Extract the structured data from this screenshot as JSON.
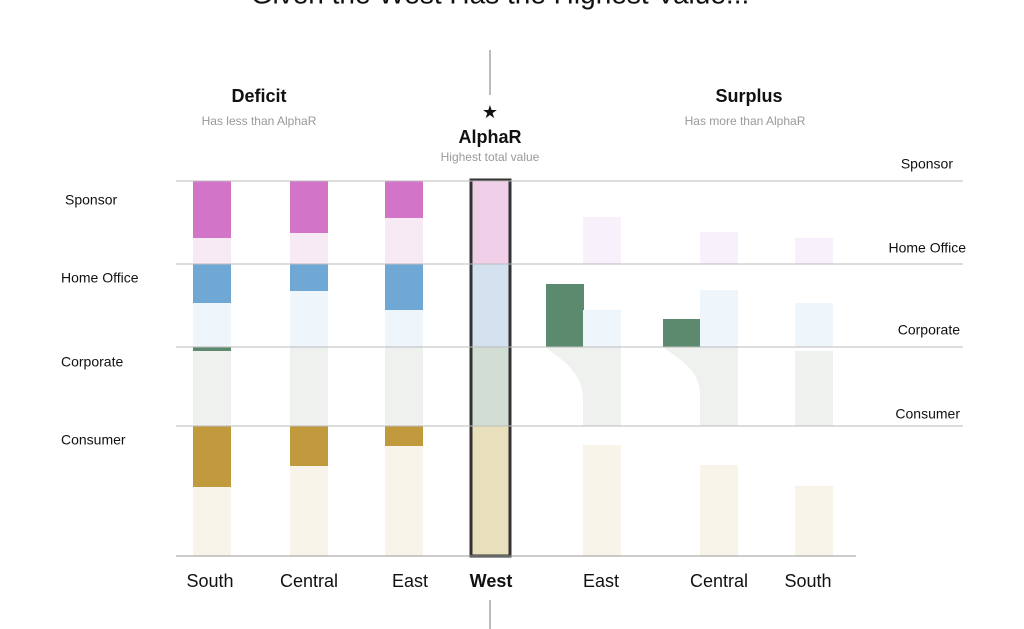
{
  "header": {
    "title": "Given the West Has the Highest Value..."
  },
  "groups": {
    "deficit": {
      "title": "Deficit",
      "subtitle": "Has less than AlphaR"
    },
    "reference": {
      "title": "AlphaR",
      "subtitle": "Highest total value"
    },
    "surplus": {
      "title": "Surplus",
      "subtitle": "Has more than AlphaR"
    }
  },
  "left_labels": [
    "Sponsor",
    "Home Office",
    "Corporate",
    "Consumer"
  ],
  "right_labels": [
    "Sponsor",
    "Home Office",
    "Corporate",
    "Consumer"
  ],
  "columns": [
    "South",
    "Central",
    "East",
    "West",
    "East",
    "Central",
    "South"
  ]
}
